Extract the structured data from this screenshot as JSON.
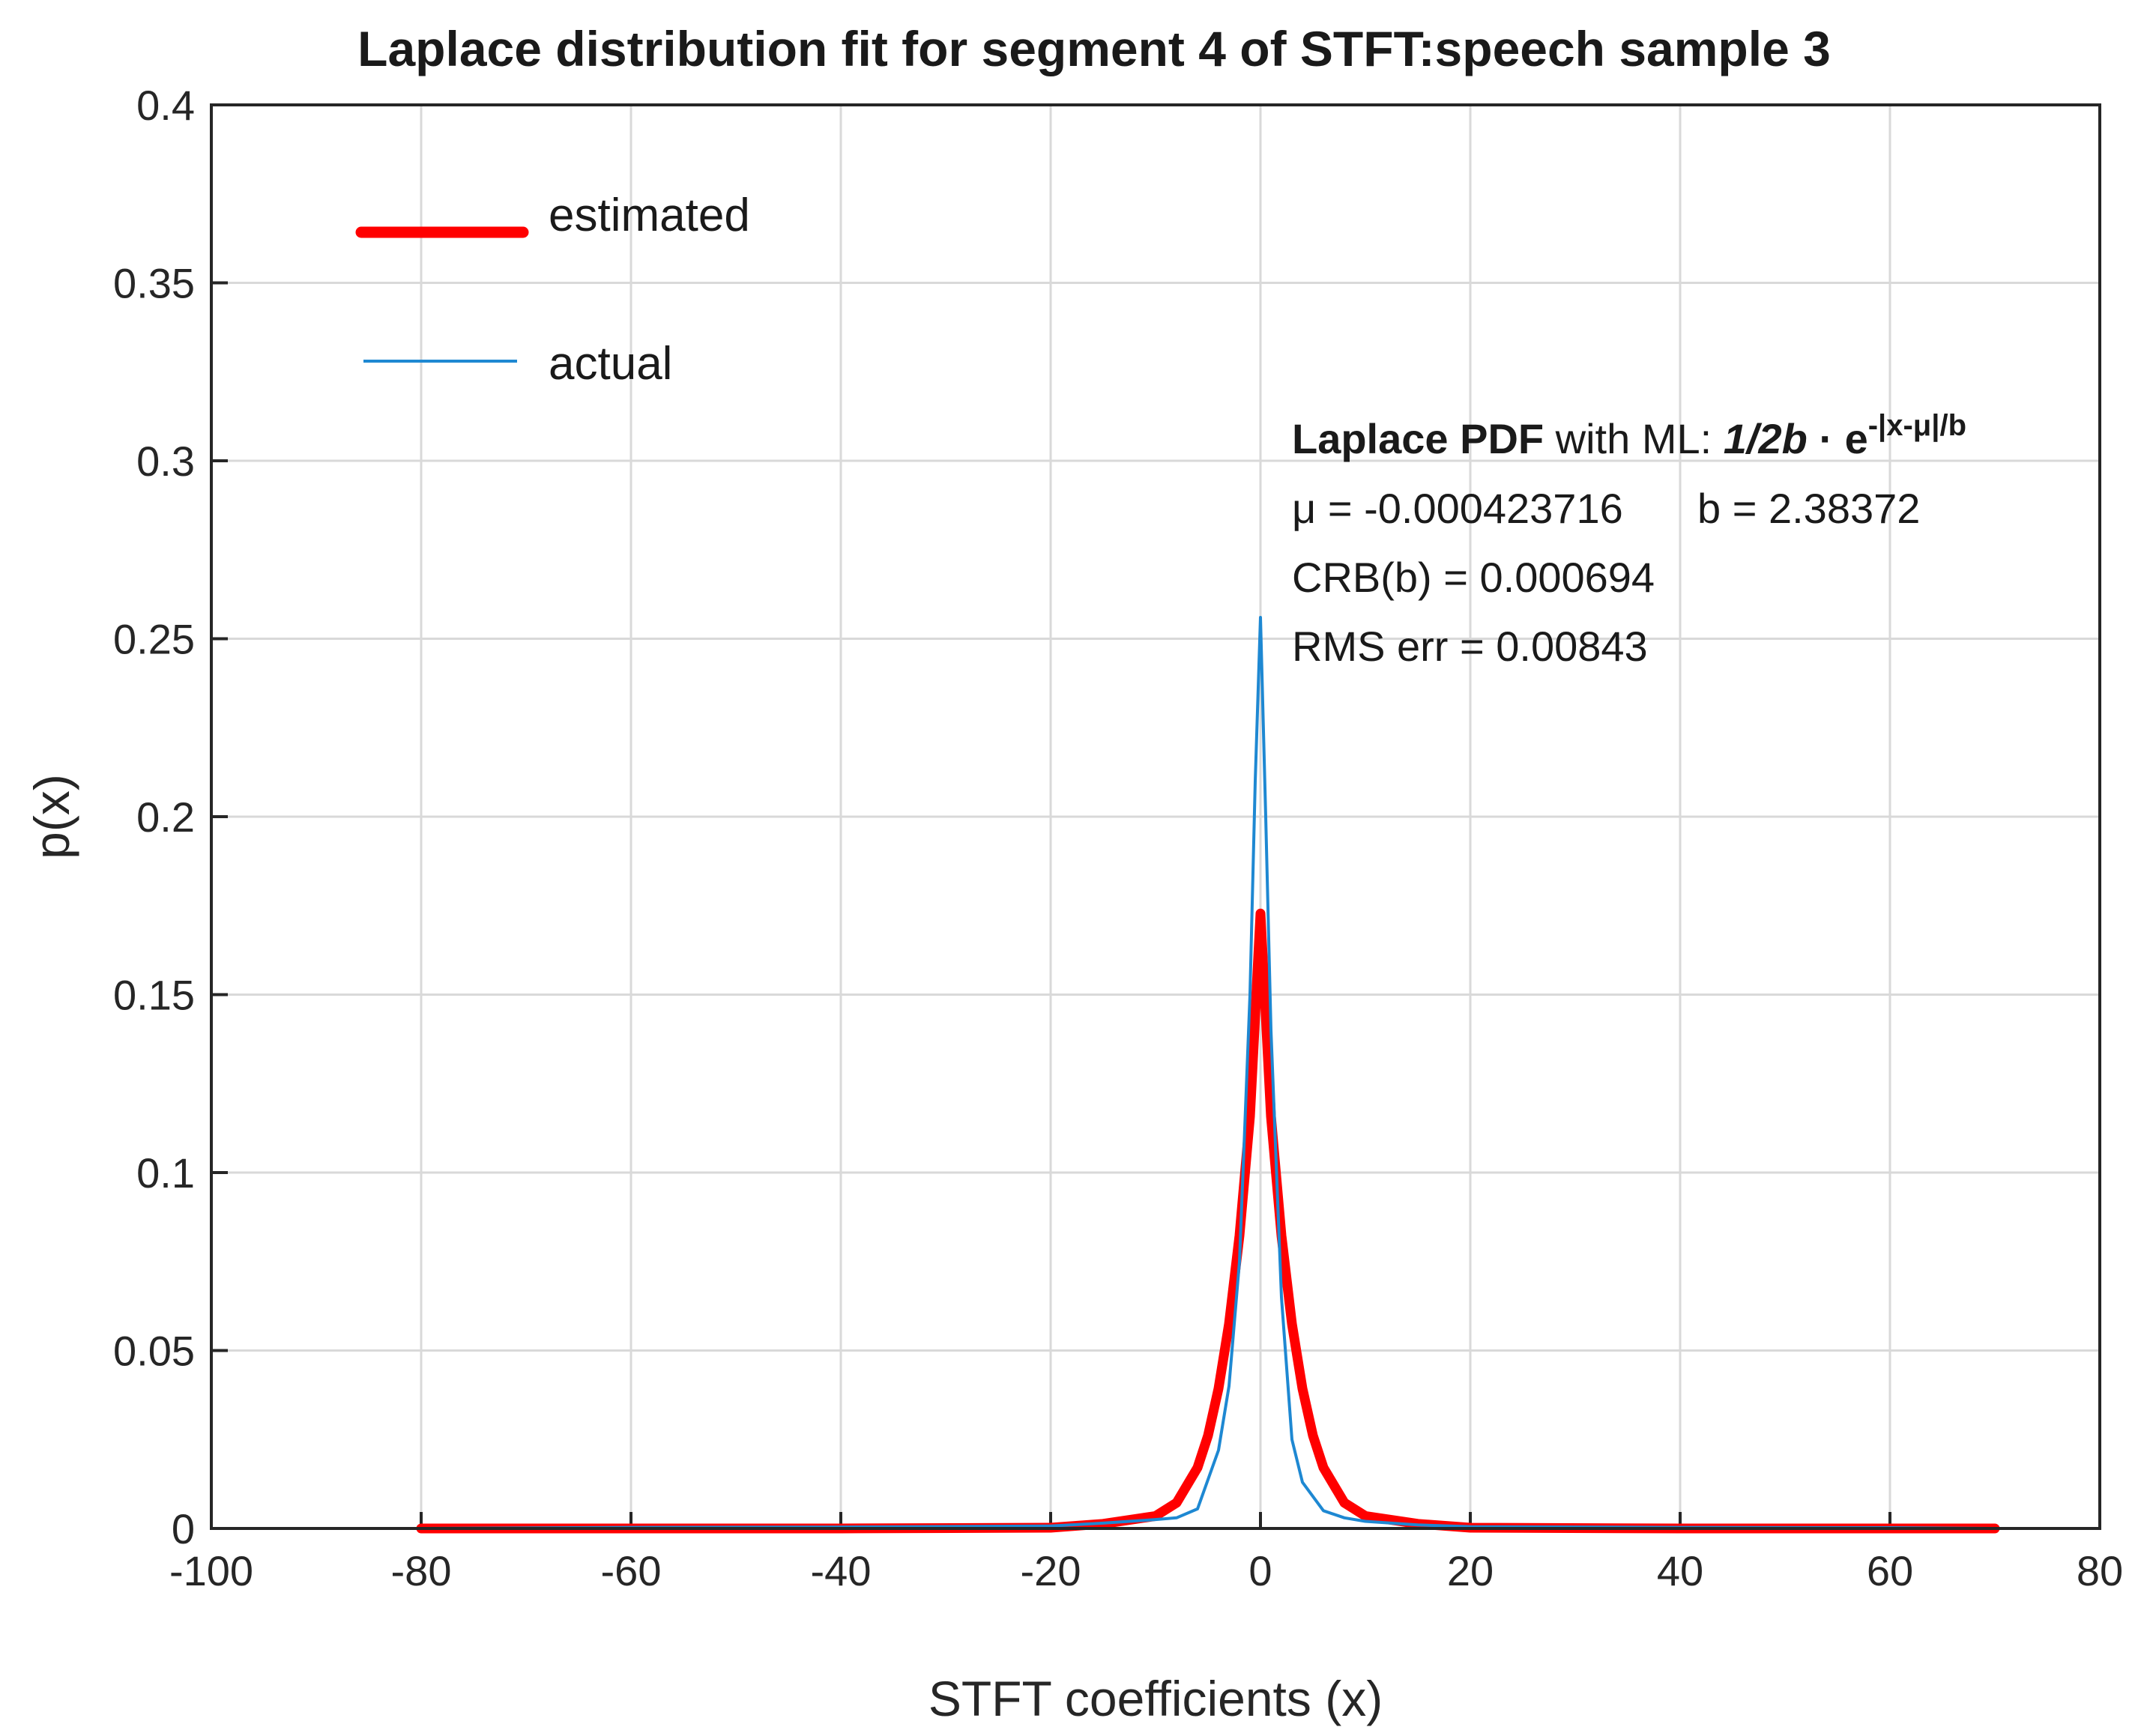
{
  "chart_data": {
    "type": "line",
    "title": "Laplace distribution fit for segment 4 of STFT:speech sample 3",
    "xlabel": "STFT coefficients (x)",
    "ylabel": "p(x)",
    "xlim": [
      -100,
      80
    ],
    "ylim": [
      0,
      0.4
    ],
    "xticks": [
      -100,
      -80,
      -60,
      -40,
      -20,
      0,
      20,
      40,
      60,
      80
    ],
    "xtick_labels": [
      "-100",
      "-80",
      "-60",
      "-40",
      "-20",
      "0",
      "20",
      "40",
      "60",
      "80"
    ],
    "yticks": [
      0,
      0.05,
      0.1,
      0.15,
      0.2,
      0.25,
      0.3,
      0.35,
      0.4
    ],
    "ytick_labels": [
      "0",
      "0.05",
      "0.1",
      "0.15",
      "0.2",
      "0.25",
      "0.3",
      "0.35",
      "0.4"
    ],
    "grid": true,
    "legend_position": "top-left",
    "series": [
      {
        "name": "estimated",
        "color": "#ff0000",
        "x": [
          -80,
          -60,
          -40,
          -20,
          -15,
          -10,
          -8,
          -6,
          -5,
          -4,
          -3,
          -2,
          -1,
          0,
          1,
          2,
          3,
          4,
          5,
          6,
          8,
          10,
          15,
          20,
          40,
          60,
          70
        ],
        "y": [
          0,
          0,
          0,
          0.0002,
          0.0013,
          0.0035,
          0.0072,
          0.0171,
          0.0261,
          0.0393,
          0.0575,
          0.0823,
          0.1158,
          0.1728,
          0.1158,
          0.0823,
          0.0575,
          0.0393,
          0.0261,
          0.0171,
          0.0072,
          0.0035,
          0.0013,
          0.0002,
          0,
          0,
          0
        ]
      },
      {
        "name": "actual",
        "color": "#1e88d2",
        "x": [
          -80,
          -60,
          -40,
          -20,
          -15,
          -10,
          -8,
          -6,
          -4,
          -3,
          -2,
          -1,
          -0.5,
          0,
          0.5,
          1,
          2,
          3,
          4,
          6,
          8,
          10,
          15,
          20,
          40,
          60,
          70
        ],
        "y": [
          0,
          0.0003,
          0.0004,
          0.0007,
          0.0015,
          0.0025,
          0.003,
          0.0055,
          0.022,
          0.04,
          0.075,
          0.15,
          0.21,
          0.256,
          0.2,
          0.14,
          0.065,
          0.025,
          0.013,
          0.005,
          0.003,
          0.002,
          0.001,
          0.0005,
          0.0003,
          0.0002,
          0
        ]
      }
    ],
    "annotation": {
      "lead_bold": "Laplace PDF",
      "lead_rest": " with ML:  ",
      "formula_coef": "1/2b",
      "formula_dot": " · e",
      "formula_exp": "-|x-μ|/b",
      "line2_mu": "μ = -0.000423716",
      "line2_b": "b = 2.38372",
      "line3": "CRB(b) = 0.000694",
      "line4": "RMS err = 0.00843"
    }
  }
}
